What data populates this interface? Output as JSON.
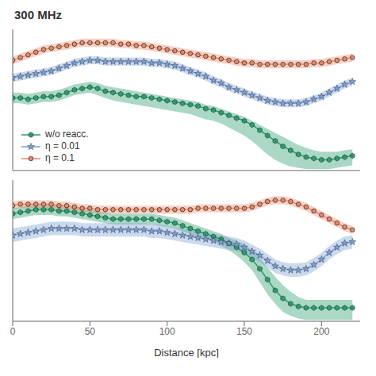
{
  "chart_data": [
    {
      "type": "line",
      "title": "300 MHz",
      "legend": "lower left",
      "tick_labels": false,
      "xlim": [
        0,
        225
      ],
      "xticks": [
        0,
        50,
        100,
        150,
        200
      ],
      "ylim": [
        0,
        1.05
      ],
      "yticks": [],
      "x": [
        0,
        5,
        10,
        15,
        20,
        25,
        30,
        35,
        40,
        45,
        50,
        55,
        60,
        65,
        70,
        75,
        80,
        85,
        90,
        95,
        100,
        105,
        110,
        115,
        120,
        125,
        130,
        135,
        140,
        145,
        150,
        155,
        160,
        165,
        170,
        175,
        180,
        185,
        190,
        195,
        200,
        205,
        210,
        215,
        220
      ],
      "series": [
        {
          "name": "w/o reacc.",
          "color": "#2a9d6e",
          "marker": "hexagon",
          "values": [
            0.54,
            0.54,
            0.53,
            0.54,
            0.55,
            0.55,
            0.56,
            0.58,
            0.6,
            0.61,
            0.62,
            0.61,
            0.59,
            0.58,
            0.57,
            0.56,
            0.55,
            0.55,
            0.54,
            0.53,
            0.52,
            0.51,
            0.5,
            0.49,
            0.48,
            0.46,
            0.45,
            0.43,
            0.41,
            0.39,
            0.37,
            0.34,
            0.3,
            0.26,
            0.22,
            0.18,
            0.15,
            0.12,
            0.1,
            0.09,
            0.08,
            0.08,
            0.09,
            0.1,
            0.11
          ],
          "lower": [
            0.5,
            0.5,
            0.49,
            0.5,
            0.51,
            0.51,
            0.52,
            0.54,
            0.56,
            0.57,
            0.58,
            0.56,
            0.54,
            0.52,
            0.51,
            0.5,
            0.49,
            0.48,
            0.47,
            0.46,
            0.45,
            0.44,
            0.43,
            0.42,
            0.4,
            0.38,
            0.37,
            0.35,
            0.32,
            0.29,
            0.26,
            0.22,
            0.17,
            0.12,
            0.08,
            0.05,
            0.03,
            0.02,
            0.01,
            0.01,
            0.01,
            0.01,
            0.02,
            0.03,
            0.04
          ],
          "upper": [
            0.58,
            0.58,
            0.57,
            0.58,
            0.59,
            0.59,
            0.6,
            0.62,
            0.64,
            0.65,
            0.66,
            0.65,
            0.63,
            0.62,
            0.61,
            0.6,
            0.59,
            0.58,
            0.57,
            0.56,
            0.55,
            0.54,
            0.53,
            0.52,
            0.51,
            0.49,
            0.48,
            0.46,
            0.44,
            0.42,
            0.4,
            0.37,
            0.34,
            0.31,
            0.28,
            0.25,
            0.22,
            0.19,
            0.17,
            0.15,
            0.14,
            0.14,
            0.14,
            0.15,
            0.16
          ]
        },
        {
          "name": "η = 0.01",
          "color": "#7b9fd4",
          "marker": "star",
          "values": [
            0.69,
            0.7,
            0.71,
            0.72,
            0.73,
            0.74,
            0.76,
            0.78,
            0.8,
            0.81,
            0.82,
            0.82,
            0.81,
            0.81,
            0.81,
            0.81,
            0.81,
            0.81,
            0.8,
            0.8,
            0.79,
            0.78,
            0.76,
            0.74,
            0.72,
            0.7,
            0.67,
            0.65,
            0.62,
            0.6,
            0.58,
            0.56,
            0.54,
            0.52,
            0.51,
            0.5,
            0.5,
            0.5,
            0.51,
            0.53,
            0.55,
            0.58,
            0.61,
            0.64,
            0.66
          ],
          "lower": [
            0.66,
            0.67,
            0.68,
            0.69,
            0.7,
            0.71,
            0.73,
            0.75,
            0.77,
            0.78,
            0.79,
            0.79,
            0.78,
            0.78,
            0.78,
            0.78,
            0.78,
            0.78,
            0.77,
            0.77,
            0.76,
            0.75,
            0.73,
            0.71,
            0.69,
            0.67,
            0.64,
            0.62,
            0.59,
            0.57,
            0.55,
            0.53,
            0.51,
            0.49,
            0.48,
            0.47,
            0.47,
            0.47,
            0.48,
            0.5,
            0.52,
            0.55,
            0.58,
            0.61,
            0.63
          ],
          "upper": [
            0.72,
            0.73,
            0.74,
            0.75,
            0.76,
            0.77,
            0.79,
            0.81,
            0.83,
            0.84,
            0.85,
            0.85,
            0.84,
            0.84,
            0.84,
            0.84,
            0.84,
            0.84,
            0.83,
            0.83,
            0.82,
            0.81,
            0.79,
            0.77,
            0.75,
            0.73,
            0.7,
            0.68,
            0.65,
            0.63,
            0.61,
            0.59,
            0.57,
            0.55,
            0.54,
            0.53,
            0.53,
            0.53,
            0.54,
            0.56,
            0.58,
            0.61,
            0.64,
            0.67,
            0.69
          ]
        },
        {
          "name": "η = 0.1",
          "color": "#e8896a",
          "marker": "circle",
          "values": [
            0.82,
            0.84,
            0.86,
            0.88,
            0.9,
            0.91,
            0.92,
            0.93,
            0.94,
            0.95,
            0.95,
            0.95,
            0.95,
            0.95,
            0.94,
            0.94,
            0.93,
            0.93,
            0.92,
            0.91,
            0.9,
            0.89,
            0.88,
            0.87,
            0.86,
            0.85,
            0.84,
            0.83,
            0.82,
            0.81,
            0.8,
            0.8,
            0.79,
            0.79,
            0.79,
            0.79,
            0.79,
            0.79,
            0.79,
            0.8,
            0.8,
            0.81,
            0.82,
            0.83,
            0.84
          ],
          "lower": [
            0.79,
            0.81,
            0.83,
            0.85,
            0.87,
            0.88,
            0.89,
            0.9,
            0.91,
            0.92,
            0.92,
            0.92,
            0.92,
            0.92,
            0.91,
            0.91,
            0.9,
            0.9,
            0.89,
            0.88,
            0.87,
            0.86,
            0.85,
            0.84,
            0.83,
            0.82,
            0.81,
            0.8,
            0.79,
            0.78,
            0.77,
            0.77,
            0.76,
            0.76,
            0.76,
            0.76,
            0.76,
            0.76,
            0.76,
            0.77,
            0.77,
            0.78,
            0.79,
            0.8,
            0.81
          ],
          "upper": [
            0.85,
            0.87,
            0.89,
            0.91,
            0.93,
            0.94,
            0.95,
            0.96,
            0.97,
            0.98,
            0.98,
            0.98,
            0.98,
            0.98,
            0.97,
            0.97,
            0.96,
            0.96,
            0.95,
            0.94,
            0.93,
            0.92,
            0.91,
            0.9,
            0.89,
            0.88,
            0.87,
            0.86,
            0.85,
            0.84,
            0.83,
            0.83,
            0.82,
            0.82,
            0.82,
            0.82,
            0.82,
            0.82,
            0.82,
            0.83,
            0.83,
            0.84,
            0.85,
            0.86,
            0.87
          ]
        }
      ]
    },
    {
      "type": "line",
      "xlabel": "Distance [kpc]",
      "tick_labels": "x",
      "xlim": [
        0,
        225
      ],
      "xticks": [
        0,
        50,
        100,
        150,
        200
      ],
      "ylim": [
        0,
        1.05
      ],
      "yticks": [],
      "x": [
        0,
        5,
        10,
        15,
        20,
        25,
        30,
        35,
        40,
        45,
        50,
        55,
        60,
        65,
        70,
        75,
        80,
        85,
        90,
        95,
        100,
        105,
        110,
        115,
        120,
        125,
        130,
        135,
        140,
        145,
        150,
        155,
        160,
        165,
        170,
        175,
        180,
        185,
        190,
        195,
        200,
        205,
        210,
        215,
        220
      ],
      "series": [
        {
          "color": "#2a9d6e",
          "marker": "hexagon",
          "values": [
            0.8,
            0.81,
            0.82,
            0.83,
            0.83,
            0.83,
            0.82,
            0.82,
            0.81,
            0.8,
            0.79,
            0.78,
            0.77,
            0.76,
            0.76,
            0.76,
            0.76,
            0.76,
            0.76,
            0.75,
            0.74,
            0.73,
            0.71,
            0.69,
            0.67,
            0.65,
            0.63,
            0.61,
            0.58,
            0.55,
            0.51,
            0.46,
            0.39,
            0.31,
            0.23,
            0.17,
            0.13,
            0.11,
            0.1,
            0.1,
            0.1,
            0.1,
            0.1,
            0.1,
            0.1
          ],
          "lower": [
            0.76,
            0.77,
            0.78,
            0.79,
            0.79,
            0.79,
            0.78,
            0.78,
            0.77,
            0.76,
            0.75,
            0.74,
            0.73,
            0.72,
            0.72,
            0.72,
            0.72,
            0.72,
            0.72,
            0.71,
            0.7,
            0.69,
            0.67,
            0.65,
            0.63,
            0.61,
            0.59,
            0.56,
            0.53,
            0.49,
            0.44,
            0.38,
            0.29,
            0.2,
            0.13,
            0.07,
            0.04,
            0.02,
            0.01,
            0.01,
            0.01,
            0.01,
            0.01,
            0.01,
            0.01
          ],
          "upper": [
            0.84,
            0.85,
            0.86,
            0.87,
            0.87,
            0.87,
            0.86,
            0.86,
            0.85,
            0.84,
            0.83,
            0.82,
            0.81,
            0.8,
            0.8,
            0.8,
            0.8,
            0.8,
            0.8,
            0.79,
            0.78,
            0.77,
            0.75,
            0.73,
            0.71,
            0.69,
            0.67,
            0.65,
            0.62,
            0.6,
            0.57,
            0.53,
            0.47,
            0.4,
            0.33,
            0.27,
            0.22,
            0.18,
            0.16,
            0.16,
            0.16,
            0.16,
            0.16,
            0.16,
            0.16
          ]
        },
        {
          "color": "#7b9fd4",
          "marker": "star",
          "values": [
            0.64,
            0.65,
            0.66,
            0.67,
            0.68,
            0.69,
            0.69,
            0.69,
            0.69,
            0.68,
            0.68,
            0.68,
            0.68,
            0.68,
            0.68,
            0.68,
            0.68,
            0.68,
            0.67,
            0.67,
            0.66,
            0.65,
            0.64,
            0.63,
            0.62,
            0.61,
            0.6,
            0.59,
            0.58,
            0.57,
            0.55,
            0.52,
            0.49,
            0.45,
            0.41,
            0.39,
            0.38,
            0.38,
            0.39,
            0.42,
            0.46,
            0.51,
            0.55,
            0.58,
            0.59
          ],
          "lower": [
            0.59,
            0.6,
            0.61,
            0.62,
            0.63,
            0.64,
            0.64,
            0.64,
            0.64,
            0.63,
            0.63,
            0.63,
            0.63,
            0.63,
            0.63,
            0.63,
            0.63,
            0.63,
            0.62,
            0.62,
            0.61,
            0.6,
            0.59,
            0.58,
            0.57,
            0.56,
            0.55,
            0.54,
            0.53,
            0.52,
            0.5,
            0.47,
            0.44,
            0.4,
            0.36,
            0.34,
            0.33,
            0.33,
            0.34,
            0.37,
            0.41,
            0.46,
            0.5,
            0.53,
            0.54
          ],
          "upper": [
            0.69,
            0.7,
            0.71,
            0.72,
            0.73,
            0.74,
            0.74,
            0.74,
            0.74,
            0.73,
            0.73,
            0.73,
            0.73,
            0.73,
            0.73,
            0.73,
            0.73,
            0.73,
            0.72,
            0.72,
            0.71,
            0.7,
            0.69,
            0.68,
            0.67,
            0.66,
            0.65,
            0.64,
            0.63,
            0.62,
            0.6,
            0.57,
            0.54,
            0.5,
            0.46,
            0.44,
            0.43,
            0.43,
            0.44,
            0.47,
            0.51,
            0.56,
            0.6,
            0.63,
            0.64
          ]
        },
        {
          "color": "#e8896a",
          "marker": "circle",
          "values": [
            0.86,
            0.87,
            0.87,
            0.87,
            0.87,
            0.87,
            0.86,
            0.86,
            0.85,
            0.84,
            0.84,
            0.83,
            0.83,
            0.83,
            0.83,
            0.83,
            0.83,
            0.83,
            0.83,
            0.83,
            0.83,
            0.83,
            0.83,
            0.83,
            0.84,
            0.84,
            0.84,
            0.84,
            0.84,
            0.84,
            0.84,
            0.85,
            0.87,
            0.89,
            0.9,
            0.9,
            0.89,
            0.87,
            0.85,
            0.82,
            0.79,
            0.76,
            0.73,
            0.7,
            0.68
          ],
          "lower": [
            0.83,
            0.84,
            0.84,
            0.84,
            0.84,
            0.84,
            0.83,
            0.83,
            0.82,
            0.81,
            0.81,
            0.8,
            0.8,
            0.8,
            0.8,
            0.8,
            0.8,
            0.8,
            0.8,
            0.8,
            0.8,
            0.8,
            0.8,
            0.8,
            0.81,
            0.81,
            0.81,
            0.81,
            0.81,
            0.81,
            0.81,
            0.82,
            0.84,
            0.86,
            0.87,
            0.87,
            0.86,
            0.84,
            0.82,
            0.79,
            0.76,
            0.73,
            0.7,
            0.67,
            0.65
          ],
          "upper": [
            0.89,
            0.9,
            0.9,
            0.9,
            0.9,
            0.9,
            0.89,
            0.89,
            0.88,
            0.87,
            0.87,
            0.86,
            0.86,
            0.86,
            0.86,
            0.86,
            0.86,
            0.86,
            0.86,
            0.86,
            0.86,
            0.86,
            0.86,
            0.86,
            0.87,
            0.87,
            0.87,
            0.87,
            0.87,
            0.87,
            0.87,
            0.88,
            0.9,
            0.92,
            0.93,
            0.93,
            0.92,
            0.9,
            0.88,
            0.85,
            0.82,
            0.79,
            0.76,
            0.73,
            0.71
          ]
        }
      ]
    }
  ]
}
